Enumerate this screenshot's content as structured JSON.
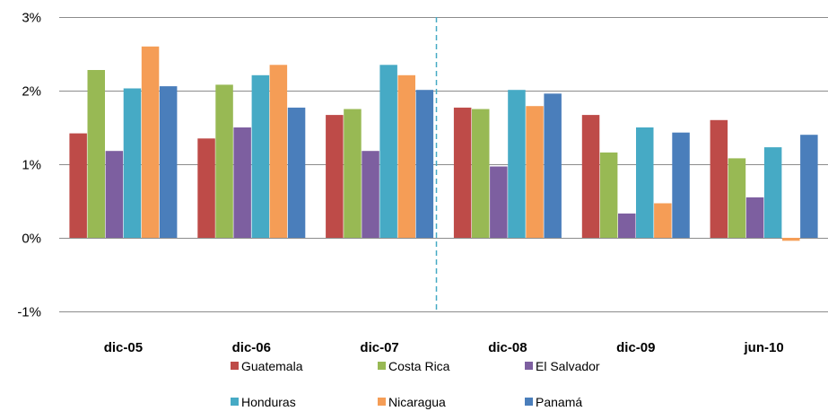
{
  "chart_data": {
    "type": "bar",
    "categories": [
      "dic-05",
      "dic-06",
      "dic-07",
      "dic-08",
      "dic-09",
      "jun-10"
    ],
    "series": [
      {
        "name": "Guatemala",
        "color": "#BE4B48",
        "values": [
          1.42,
          1.35,
          1.67,
          1.77,
          1.67,
          1.6
        ]
      },
      {
        "name": "Costa Rica",
        "color": "#98B954",
        "values": [
          2.28,
          2.08,
          1.75,
          1.75,
          1.16,
          1.08
        ]
      },
      {
        "name": "El Salvador",
        "color": "#7D5FA0",
        "values": [
          1.18,
          1.5,
          1.18,
          0.97,
          0.33,
          0.55
        ]
      },
      {
        "name": "Honduras",
        "color": "#46AAC5",
        "values": [
          2.03,
          2.21,
          2.35,
          2.01,
          1.5,
          1.23
        ]
      },
      {
        "name": "Nicaragua",
        "color": "#F59D56",
        "values": [
          2.6,
          2.35,
          2.21,
          1.79,
          0.47,
          -0.04
        ]
      },
      {
        "name": "Panamá",
        "color": "#4A7EBB",
        "values": [
          2.06,
          1.77,
          2.01,
          1.96,
          1.43,
          1.4
        ]
      }
    ],
    "ylim": [
      -1,
      3
    ],
    "yticks": [
      -1,
      0,
      1,
      2,
      3
    ],
    "ytick_labels": [
      "-1%",
      "0%",
      "1%",
      "2%",
      "3%"
    ],
    "grid": true,
    "divider_after_category": "dic-07",
    "legend_position": "bottom",
    "title": "",
    "xlabel": "",
    "ylabel": ""
  }
}
